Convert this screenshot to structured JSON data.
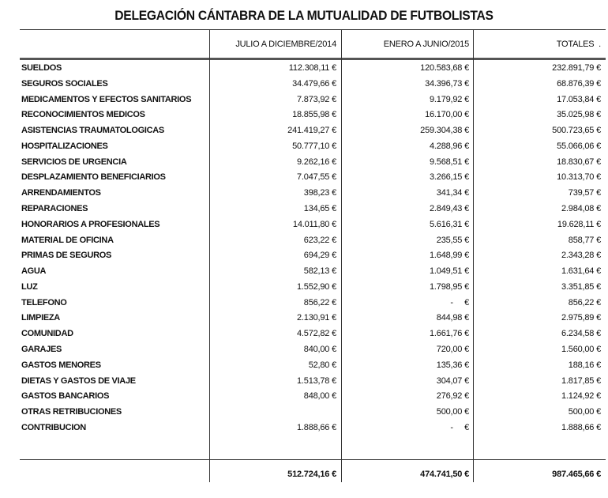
{
  "title": "DELEGACIÓN CÁNTABRA DE LA MUTUALIDAD DE FUTBOLISTAS",
  "columns": [
    "JULIO A DICIEMBRE/2014",
    "ENERO A JUNIO/2015",
    "TOTALES  ."
  ],
  "rows": [
    {
      "label": "SUELDOS",
      "v": [
        "112.308,11 €",
        "120.583,68 €",
        "232.891,79 €"
      ]
    },
    {
      "label": "SEGUROS SOCIALES",
      "v": [
        "34.479,66 €",
        "34.396,73 €",
        "68.876,39 €"
      ]
    },
    {
      "label": "MEDICAMENTOS Y EFECTOS SANITARIOS",
      "v": [
        "7.873,92 €",
        "9.179,92 €",
        "17.053,84 €"
      ]
    },
    {
      "label": "RECONOCIMIENTOS MEDICOS",
      "v": [
        "18.855,98 €",
        "16.170,00 €",
        "35.025,98 €"
      ]
    },
    {
      "label": "ASISTENCIAS TRAUMATOLOGICAS",
      "v": [
        "241.419,27 €",
        "259.304,38 €",
        "500.723,65 €"
      ]
    },
    {
      "label": "HOSPITALIZACIONES",
      "v": [
        "50.777,10 €",
        "4.288,96 €",
        "55.066,06 €"
      ]
    },
    {
      "label": "SERVICIOS DE URGENCIA",
      "v": [
        "9.262,16 €",
        "9.568,51 €",
        "18.830,67 €"
      ]
    },
    {
      "label": "DESPLAZAMIENTO BENEFICIARIOS",
      "v": [
        "7.047,55 €",
        "3.266,15 €",
        "10.313,70 €"
      ]
    },
    {
      "label": "ARRENDAMIENTOS",
      "v": [
        "398,23 €",
        "341,34 €",
        "739,57 €"
      ]
    },
    {
      "label": "REPARACIONES",
      "v": [
        "134,65 €",
        "2.849,43 €",
        "2.984,08 €"
      ]
    },
    {
      "label": "HONORARIOS A PROFESIONALES",
      "v": [
        "14.011,80 €",
        "5.616,31 €",
        "19.628,11 €"
      ]
    },
    {
      "label": "MATERIAL DE OFICINA",
      "v": [
        "623,22 €",
        "235,55 €",
        "858,77 €"
      ]
    },
    {
      "label": "PRIMAS DE SEGUROS",
      "v": [
        "694,29 €",
        "1.648,99 €",
        "2.343,28 €"
      ]
    },
    {
      "label": "AGUA",
      "v": [
        "582,13 €",
        "1.049,51 €",
        "1.631,64 €"
      ]
    },
    {
      "label": "LUZ",
      "v": [
        "1.552,90 €",
        "1.798,95 €",
        "3.351,85 €"
      ]
    },
    {
      "label": "TELEFONO",
      "v": [
        "856,22 €",
        "-     €",
        "856,22 €"
      ]
    },
    {
      "label": "LIMPIEZA",
      "v": [
        "2.130,91 €",
        "844,98 €",
        "2.975,89 €"
      ]
    },
    {
      "label": "COMUNIDAD",
      "v": [
        "4.572,82 €",
        "1.661,76 €",
        "6.234,58 €"
      ]
    },
    {
      "label": "GARAJES",
      "v": [
        "840,00 €",
        "720,00 €",
        "1.560,00 €"
      ]
    },
    {
      "label": "GASTOS MENORES",
      "v": [
        "52,80 €",
        "135,36 €",
        "188,16 €"
      ]
    },
    {
      "label": "DIETAS Y GASTOS DE VIAJE",
      "v": [
        "1.513,78 €",
        "304,07 €",
        "1.817,85 €"
      ]
    },
    {
      "label": "GASTOS BANCARIOS",
      "v": [
        "848,00 €",
        "276,92 €",
        "1.124,92 €"
      ]
    },
    {
      "label": "OTRAS RETRIBUCIONES",
      "v": [
        "",
        "500,00 €",
        "500,00 €"
      ]
    },
    {
      "label": "CONTRIBUCION",
      "v": [
        "1.888,66 €",
        "-     €",
        "1.888,66 €"
      ]
    }
  ],
  "totals": [
    "512.724,16 €",
    "474.741,50 €",
    "987.465,66 €"
  ]
}
